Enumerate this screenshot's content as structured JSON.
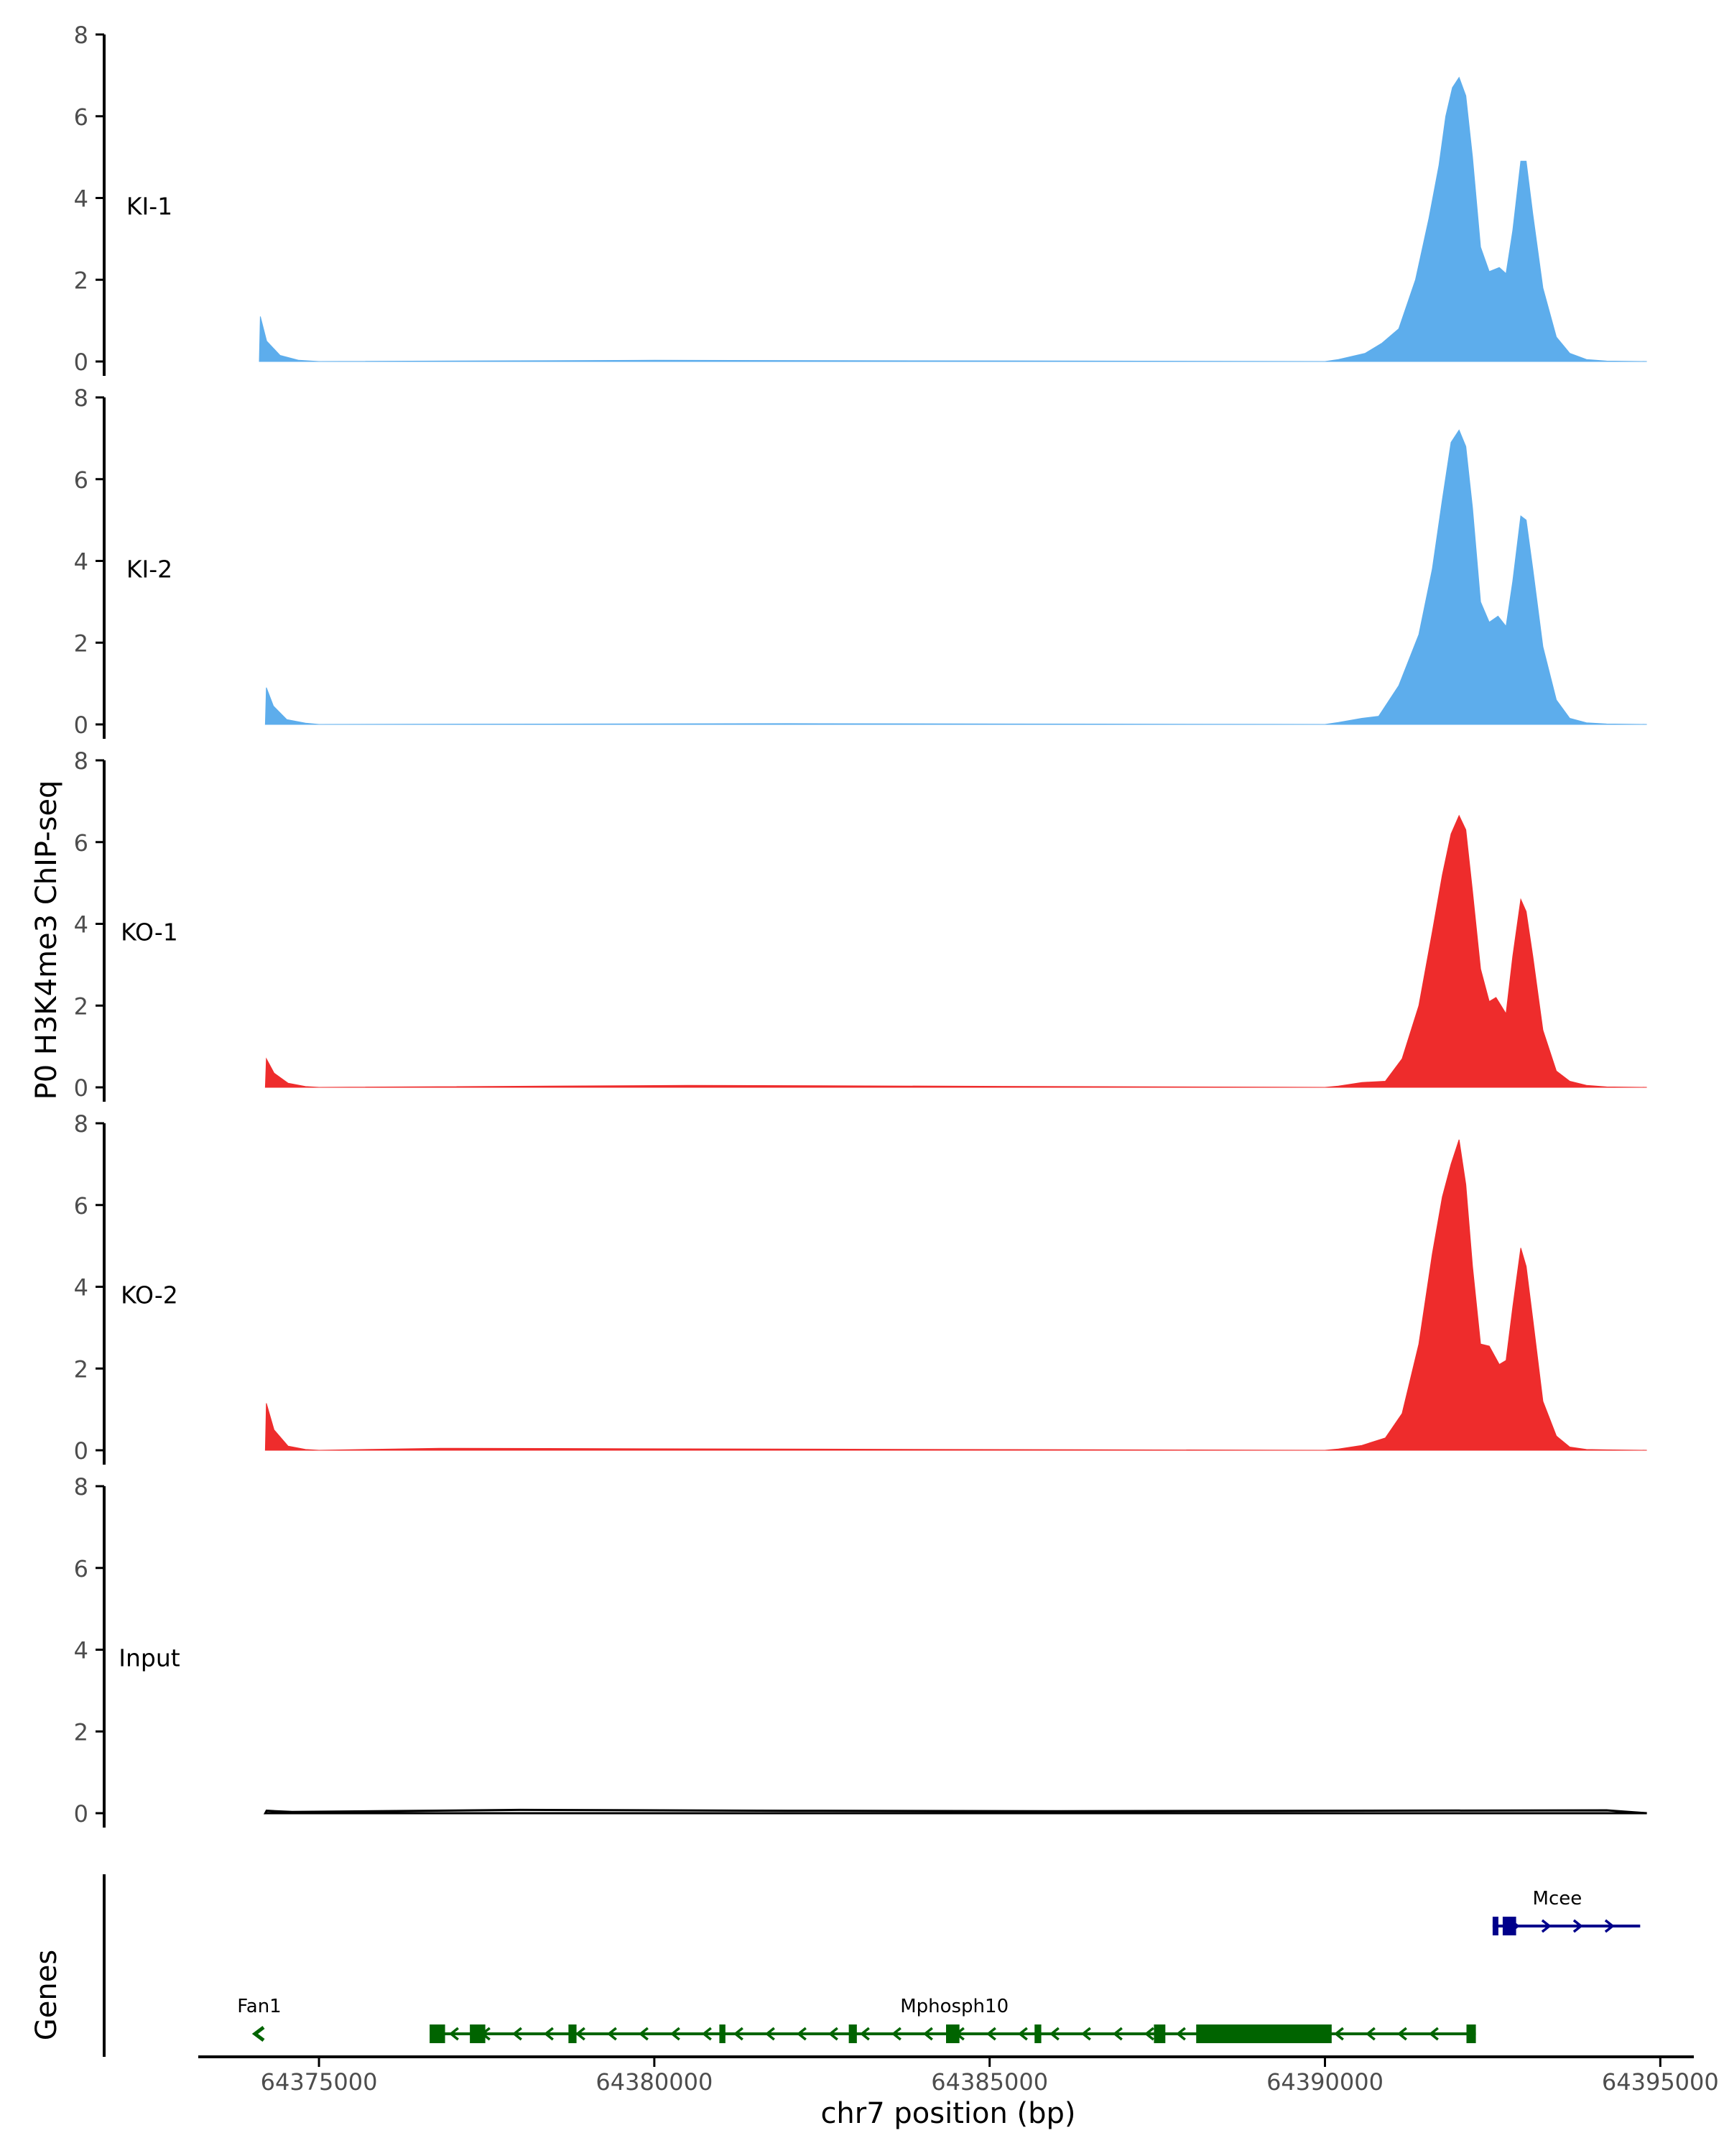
{
  "chart_data": {
    "type": "area",
    "title": "",
    "ylabel": "P0 H3K4me3 ChIP-seq",
    "xlabel": "chr7 position (bp)",
    "xlim": [
      64373200,
      64395500
    ],
    "ylim": [
      0,
      8
    ],
    "y_ticks": [
      "0",
      "2",
      "4",
      "6",
      "8"
    ],
    "x_ticks": [
      {
        "value": 64375000,
        "label": "64375000"
      },
      {
        "value": 64380000,
        "label": "64380000"
      },
      {
        "value": 64385000,
        "label": "64385000"
      },
      {
        "value": 64390000,
        "label": "64390000"
      },
      {
        "value": 64395000,
        "label": "64395000"
      }
    ],
    "tracks": [
      {
        "name": "KI-1",
        "color": "#5DADEC",
        "points": [
          [
            64374110,
            0
          ],
          [
            64374125,
            1.1
          ],
          [
            64374220,
            0.5
          ],
          [
            64374420,
            0.15
          ],
          [
            64374700,
            0.03
          ],
          [
            64375000,
            0
          ],
          [
            64380000,
            0.03
          ],
          [
            64390000,
            0
          ],
          [
            64390200,
            0.05
          ],
          [
            64390600,
            0.2
          ],
          [
            64390850,
            0.45
          ],
          [
            64391100,
            0.8
          ],
          [
            64391350,
            2.0
          ],
          [
            64391550,
            3.5
          ],
          [
            64391700,
            4.8
          ],
          [
            64391800,
            6.0
          ],
          [
            64391900,
            6.7
          ],
          [
            64392000,
            6.95
          ],
          [
            64392100,
            6.5
          ],
          [
            64392200,
            5.0
          ],
          [
            64392320,
            2.8
          ],
          [
            64392450,
            2.2
          ],
          [
            64392600,
            2.3
          ],
          [
            64392700,
            2.15
          ],
          [
            64392800,
            3.2
          ],
          [
            64392920,
            4.9
          ],
          [
            64393000,
            4.9
          ],
          [
            64393100,
            3.6
          ],
          [
            64393250,
            1.8
          ],
          [
            64393450,
            0.6
          ],
          [
            64393650,
            0.2
          ],
          [
            64393900,
            0.05
          ],
          [
            64394200,
            0.01
          ],
          [
            64394800,
            0
          ]
        ]
      },
      {
        "name": "KI-2",
        "color": "#5DADEC",
        "points": [
          [
            64374200,
            0
          ],
          [
            64374215,
            0.9
          ],
          [
            64374320,
            0.45
          ],
          [
            64374520,
            0.12
          ],
          [
            64374800,
            0.03
          ],
          [
            64375000,
            0
          ],
          [
            64382000,
            0.02
          ],
          [
            64390000,
            0
          ],
          [
            64390200,
            0.05
          ],
          [
            64390550,
            0.15
          ],
          [
            64390800,
            0.2
          ],
          [
            64391100,
            0.95
          ],
          [
            64391400,
            2.2
          ],
          [
            64391600,
            3.8
          ],
          [
            64391750,
            5.5
          ],
          [
            64391880,
            6.9
          ],
          [
            64392000,
            7.2
          ],
          [
            64392100,
            6.8
          ],
          [
            64392200,
            5.3
          ],
          [
            64392320,
            3.0
          ],
          [
            64392450,
            2.5
          ],
          [
            64392580,
            2.65
          ],
          [
            64392700,
            2.4
          ],
          [
            64392800,
            3.5
          ],
          [
            64392920,
            5.1
          ],
          [
            64393000,
            5.0
          ],
          [
            64393100,
            3.8
          ],
          [
            64393250,
            1.9
          ],
          [
            64393450,
            0.6
          ],
          [
            64393650,
            0.15
          ],
          [
            64393900,
            0.04
          ],
          [
            64394200,
            0.01
          ],
          [
            64394800,
            0
          ]
        ]
      },
      {
        "name": "KO-1",
        "color": "#EE2C2C",
        "points": [
          [
            64374200,
            0
          ],
          [
            64374215,
            0.7
          ],
          [
            64374330,
            0.35
          ],
          [
            64374540,
            0.1
          ],
          [
            64374800,
            0.02
          ],
          [
            64375000,
            0
          ],
          [
            64380500,
            0.05
          ],
          [
            64390000,
            0
          ],
          [
            64390200,
            0.03
          ],
          [
            64390550,
            0.12
          ],
          [
            64390900,
            0.15
          ],
          [
            64391150,
            0.7
          ],
          [
            64391400,
            2.0
          ],
          [
            64391600,
            3.8
          ],
          [
            64391750,
            5.2
          ],
          [
            64391880,
            6.2
          ],
          [
            64392000,
            6.65
          ],
          [
            64392100,
            6.3
          ],
          [
            64392200,
            4.8
          ],
          [
            64392320,
            2.9
          ],
          [
            64392450,
            2.1
          ],
          [
            64392550,
            2.2
          ],
          [
            64392700,
            1.8
          ],
          [
            64392800,
            3.2
          ],
          [
            64392920,
            4.6
          ],
          [
            64393000,
            4.3
          ],
          [
            64393100,
            3.2
          ],
          [
            64393250,
            1.4
          ],
          [
            64393450,
            0.4
          ],
          [
            64393650,
            0.15
          ],
          [
            64393900,
            0.05
          ],
          [
            64394200,
            0.01
          ],
          [
            64394800,
            0
          ]
        ]
      },
      {
        "name": "KO-2",
        "color": "#EE2C2C",
        "points": [
          [
            64374200,
            0
          ],
          [
            64374215,
            1.15
          ],
          [
            64374330,
            0.5
          ],
          [
            64374540,
            0.1
          ],
          [
            64374800,
            0.02
          ],
          [
            64375000,
            0
          ],
          [
            64376800,
            0.05
          ],
          [
            64390000,
            0
          ],
          [
            64390200,
            0.03
          ],
          [
            64390550,
            0.12
          ],
          [
            64390900,
            0.3
          ],
          [
            64391150,
            0.9
          ],
          [
            64391400,
            2.6
          ],
          [
            64391600,
            4.8
          ],
          [
            64391750,
            6.2
          ],
          [
            64391880,
            7.0
          ],
          [
            64392000,
            7.6
          ],
          [
            64392100,
            6.5
          ],
          [
            64392200,
            4.5
          ],
          [
            64392320,
            2.6
          ],
          [
            64392450,
            2.55
          ],
          [
            64392600,
            2.1
          ],
          [
            64392700,
            2.2
          ],
          [
            64392800,
            3.5
          ],
          [
            64392920,
            4.95
          ],
          [
            64393000,
            4.5
          ],
          [
            64393100,
            3.2
          ],
          [
            64393250,
            1.2
          ],
          [
            64393450,
            0.35
          ],
          [
            64393650,
            0.08
          ],
          [
            64393900,
            0.02
          ],
          [
            64394200,
            0.01
          ],
          [
            64394800,
            0
          ]
        ]
      },
      {
        "name": "Input",
        "color": "#000000",
        "points": [
          [
            64374200,
            0
          ],
          [
            64374220,
            0.06
          ],
          [
            64374600,
            0.03
          ],
          [
            64378000,
            0.08
          ],
          [
            64382000,
            0.06
          ],
          [
            64386000,
            0.05
          ],
          [
            64390000,
            0.06
          ],
          [
            64394200,
            0.07
          ],
          [
            64394800,
            0
          ]
        ]
      }
    ],
    "genes_label": "Genes",
    "genes": [
      {
        "name": "Fan1",
        "strand": "-",
        "color": "#006400",
        "start": 64374020,
        "end": 64374200,
        "lane": "bottom",
        "exons": []
      },
      {
        "name": "Mphosph10",
        "strand": "-",
        "color": "#006400",
        "start": 64376700,
        "end": 64392250,
        "lane": "bottom",
        "exons": [
          [
            64376650,
            64376880
          ],
          [
            64377250,
            64377480
          ],
          [
            64378720,
            64378840
          ],
          [
            64380970,
            64381060
          ],
          [
            64382900,
            64383020
          ],
          [
            64384350,
            64384550
          ],
          [
            64385670,
            64385770
          ],
          [
            64387450,
            64387620
          ],
          [
            64388080,
            64390100
          ],
          [
            64392110,
            64392250
          ]
        ]
      },
      {
        "name": "Mcee",
        "strand": "+",
        "color": "#00008B",
        "start": 64392500,
        "end": 64394700,
        "lane": "top",
        "exons": [
          [
            64392500,
            64392580
          ],
          [
            64392650,
            64392850
          ]
        ]
      }
    ]
  }
}
